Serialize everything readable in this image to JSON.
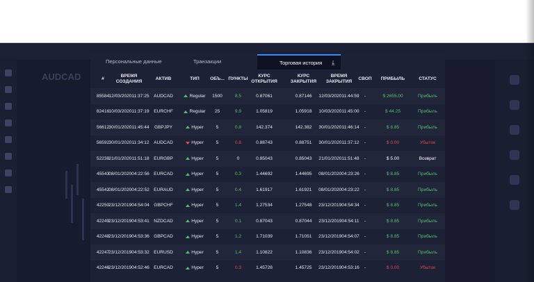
{
  "tabs": {
    "personal": "Персональные данные",
    "transactions": "Транзакции",
    "history": "Торговая история",
    "download_icon": "download-icon"
  },
  "background": {
    "asset_label": "AUDCAD"
  },
  "columns": [
    "#",
    "ВРЕМЯ СОЗДАНИЯ",
    "АКТИВ",
    "ТИП",
    "ОБЪ...",
    "ПУНКТЫ",
    "КУРС ОТКРЫТИЯ",
    "КУРС ЗАКРЫТИЯ",
    "ВРЕМЯ ЗАКРЫТИЯ",
    "СВОП",
    "ПРИБЫЛЬ",
    "СТАТУС"
  ],
  "trades": [
    {
      "id": "85584",
      "created_date": "12/03/2020",
      "created_time": "11:37:25",
      "asset": "AUDCAD",
      "direction": "up",
      "type": "Regular",
      "volume": "1500",
      "points": "8.5",
      "open_rate": "0.87061",
      "close_rate": "0.87146",
      "closed_date": "12/03/2020",
      "closed_time": "11:44:59",
      "swap": "-",
      "profit": "$ 2655.00",
      "status": "Прибыль"
    },
    {
      "id": "82416",
      "created_date": "10/03/2020",
      "created_time": "11:37:19",
      "asset": "EURCHF",
      "direction": "up",
      "type": "Regular",
      "volume": "25",
      "points": "9.9",
      "open_rate": "1.05819",
      "close_rate": "1.05918",
      "closed_date": "10/03/2020",
      "closed_time": "11:45:00",
      "swap": "-",
      "profit": "$ 44.25",
      "status": "Прибыль"
    },
    {
      "id": "56612",
      "created_date": "30/01/2020",
      "created_time": "11:45:44",
      "asset": "GBPJPY",
      "direction": "up",
      "type": "Hyper",
      "volume": "5",
      "points": "0.8",
      "open_rate": "142.374",
      "close_rate": "142.382",
      "closed_date": "30/01/2020",
      "closed_time": "11:46:14",
      "swap": "-",
      "profit": "$ 8.85",
      "status": "Прибыль"
    },
    {
      "id": "56592",
      "created_date": "30/01/2020",
      "created_time": "11:34:12",
      "asset": "AUDCAD",
      "direction": "down",
      "type": "Hyper",
      "volume": "5",
      "points": "0.8",
      "open_rate": "0.88743",
      "close_rate": "0.88751",
      "closed_date": "30/01/2020",
      "closed_time": "11:37:12",
      "swap": "-",
      "profit": "$ 0.00",
      "status": "Убыток"
    },
    {
      "id": "52238",
      "created_date": "21/01/2020",
      "created_time": "11:51:18",
      "asset": "EURGBP",
      "direction": "up",
      "type": "Hyper",
      "volume": "5",
      "points": "0",
      "open_rate": "0.85043",
      "close_rate": "0.85043",
      "closed_date": "21/01/2020",
      "closed_time": "11:51:48",
      "swap": "-",
      "profit": "$ 5.00",
      "status": "Возврат"
    },
    {
      "id": "45543",
      "created_date": "08/01/2020",
      "created_time": "04:22:56",
      "asset": "EURCAD",
      "direction": "up",
      "type": "Hyper",
      "volume": "5",
      "points": "0.3",
      "open_rate": "1.44692",
      "close_rate": "1.44695",
      "closed_date": "08/01/2020",
      "closed_time": "04:23:26",
      "swap": "-",
      "profit": "$ 8.85",
      "status": "Прибыль"
    },
    {
      "id": "45542",
      "created_date": "08/01/2020",
      "created_time": "04:22:52",
      "asset": "EURAUD",
      "direction": "up",
      "type": "Hyper",
      "volume": "5",
      "points": "0.4",
      "open_rate": "1.61917",
      "close_rate": "1.61921",
      "closed_date": "08/01/2020",
      "closed_time": "04:23:22",
      "swap": "-",
      "profit": "$ 8.85",
      "status": "Прибыль"
    },
    {
      "id": "42250",
      "created_date": "23/12/2019",
      "created_time": "04:54:04",
      "asset": "GBPCHF",
      "direction": "up",
      "type": "Hyper",
      "volume": "5",
      "points": "1.4",
      "open_rate": "1.27534",
      "close_rate": "1.27548",
      "closed_date": "23/12/2019",
      "closed_time": "04:54:34",
      "swap": "-",
      "profit": "$ 8.85",
      "status": "Прибыль"
    },
    {
      "id": "42249",
      "created_date": "23/12/2019",
      "created_time": "04:53:41",
      "asset": "NZDCAD",
      "direction": "up",
      "type": "Hyper",
      "volume": "5",
      "points": "0.1",
      "open_rate": "0.87043",
      "close_rate": "0.87044",
      "closed_date": "23/12/2019",
      "closed_time": "04:54:11",
      "swap": "-",
      "profit": "$ 8.85",
      "status": "Прибыль"
    },
    {
      "id": "42248",
      "created_date": "23/12/2019",
      "created_time": "04:53:36",
      "asset": "GBPCAD",
      "direction": "up",
      "type": "Hyper",
      "volume": "5",
      "points": "1.2",
      "open_rate": "1.71039",
      "close_rate": "1.71051",
      "closed_date": "23/12/2019",
      "closed_time": "04:54:07",
      "swap": "-",
      "profit": "$ 8.85",
      "status": "Прибыль"
    },
    {
      "id": "42247",
      "created_date": "23/12/2019",
      "created_time": "04:53:32",
      "asset": "EURUSD",
      "direction": "up",
      "type": "Hyper",
      "volume": "5",
      "points": "1.4",
      "open_rate": "1.10822",
      "close_rate": "1.10836",
      "closed_date": "23/12/2019",
      "closed_time": "04:54:02",
      "swap": "-",
      "profit": "$ 8.85",
      "status": "Прибыль"
    },
    {
      "id": "42246",
      "created_date": "23/12/2019",
      "created_time": "04:52:46",
      "asset": "EURCAD",
      "direction": "up",
      "type": "Hyper",
      "volume": "5",
      "points": "0.3",
      "open_rate": "1.45728",
      "close_rate": "1.45725",
      "closed_date": "23/12/2019",
      "closed_time": "04:53:16",
      "swap": "-",
      "profit": "$ 0.00",
      "status": "Убыток"
    }
  ],
  "colors": {
    "profit": "#4ec26a",
    "loss": "#e8484a",
    "accent": "#3b8cf0",
    "panel": "#1d2136"
  }
}
